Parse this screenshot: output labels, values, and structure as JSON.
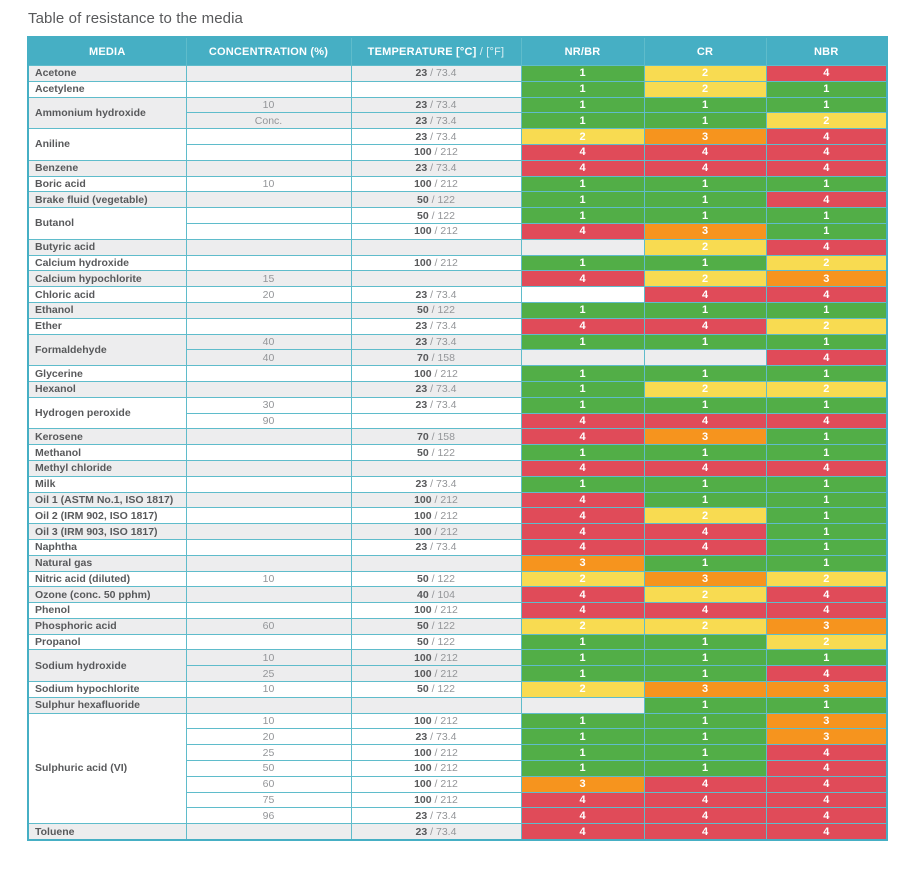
{
  "page": {
    "title": "Table of resistance to the media"
  },
  "table": {
    "header": {
      "media": "MEDIA",
      "concentration": "CONCENTRATION (%)",
      "temperature_main": "TEMPERATURE [°C]",
      "temperature_sub": " / [°F]",
      "nr_br": "NR/BR",
      "cr": "CR",
      "nbr": "NBR"
    },
    "colors": {
      "header_bg": "#46afc4",
      "grid_border": "#5fbccb",
      "zebra_gray": "#ededee",
      "media_text": "#58595b",
      "muted_text": "#939598"
    },
    "rating_colors": {
      "1": "#52ae47",
      "2": "#f8db51",
      "3": "#f6941e",
      "4": "#e04b59"
    },
    "groups": [
      {
        "media": "Acetone",
        "rows": [
          {
            "concentration": "",
            "temp_c": "23",
            "temp_f": "73.4",
            "ratings": [
              "1",
              "2",
              "4"
            ]
          }
        ]
      },
      {
        "media": "Acetylene",
        "rows": [
          {
            "concentration": "",
            "temp_c": "",
            "temp_f": "",
            "ratings": [
              "1",
              "2",
              "1"
            ]
          }
        ]
      },
      {
        "media": "Ammonium hydroxide",
        "rows": [
          {
            "concentration": "10",
            "temp_c": "23",
            "temp_f": "73.4",
            "ratings": [
              "1",
              "1",
              "1"
            ]
          },
          {
            "concentration": "Conc.",
            "temp_c": "23",
            "temp_f": "73.4",
            "ratings": [
              "1",
              "1",
              "2"
            ]
          }
        ]
      },
      {
        "media": "Aniline",
        "rows": [
          {
            "concentration": "",
            "temp_c": "23",
            "temp_f": "73.4",
            "ratings": [
              "2",
              "3",
              "4"
            ]
          },
          {
            "concentration": "",
            "temp_c": "100",
            "temp_f": "212",
            "ratings": [
              "4",
              "4",
              "4"
            ]
          }
        ]
      },
      {
        "media": "Benzene",
        "rows": [
          {
            "concentration": "",
            "temp_c": "23",
            "temp_f": "73.4",
            "ratings": [
              "4",
              "4",
              "4"
            ]
          }
        ]
      },
      {
        "media": "Boric acid",
        "rows": [
          {
            "concentration": "10",
            "temp_c": "100",
            "temp_f": "212",
            "ratings": [
              "1",
              "1",
              "1"
            ]
          }
        ]
      },
      {
        "media": "Brake fluid (vegetable)",
        "rows": [
          {
            "concentration": "",
            "temp_c": "50",
            "temp_f": "122",
            "ratings": [
              "1",
              "1",
              "4"
            ]
          }
        ]
      },
      {
        "media": "Butanol",
        "rows": [
          {
            "concentration": "",
            "temp_c": "50",
            "temp_f": "122",
            "ratings": [
              "1",
              "1",
              "1"
            ]
          },
          {
            "concentration": "",
            "temp_c": "100",
            "temp_f": "212",
            "ratings": [
              "4",
              "3",
              "1"
            ]
          }
        ]
      },
      {
        "media": "Butyric acid",
        "rows": [
          {
            "concentration": "",
            "temp_c": "",
            "temp_f": "",
            "ratings": [
              null,
              "2",
              "4"
            ]
          }
        ]
      },
      {
        "media": "Calcium hydroxide",
        "rows": [
          {
            "concentration": "",
            "temp_c": "100",
            "temp_f": "212",
            "ratings": [
              "1",
              "1",
              "2"
            ]
          }
        ]
      },
      {
        "media": "Calcium hypochlorite",
        "rows": [
          {
            "concentration": "15",
            "temp_c": "",
            "temp_f": "",
            "ratings": [
              "4",
              "2",
              "3"
            ]
          }
        ]
      },
      {
        "media": "Chloric acid",
        "rows": [
          {
            "concentration": "20",
            "temp_c": "23",
            "temp_f": "73.4",
            "ratings": [
              null,
              "4",
              "4"
            ]
          }
        ]
      },
      {
        "media": "Ethanol",
        "rows": [
          {
            "concentration": "",
            "temp_c": "50",
            "temp_f": "122",
            "ratings": [
              "1",
              "1",
              "1"
            ]
          }
        ]
      },
      {
        "media": "Ether",
        "rows": [
          {
            "concentration": "",
            "temp_c": "23",
            "temp_f": "73.4",
            "ratings": [
              "4",
              "4",
              "2"
            ]
          }
        ]
      },
      {
        "media": "Formaldehyde",
        "rows": [
          {
            "concentration": "40",
            "temp_c": "23",
            "temp_f": "73.4",
            "ratings": [
              "1",
              "1",
              "1"
            ]
          },
          {
            "concentration": "40",
            "temp_c": "70",
            "temp_f": "158",
            "ratings": [
              null,
              null,
              "4"
            ]
          }
        ]
      },
      {
        "media": "Glycerine",
        "rows": [
          {
            "concentration": "",
            "temp_c": "100",
            "temp_f": "212",
            "ratings": [
              "1",
              "1",
              "1"
            ]
          }
        ]
      },
      {
        "media": "Hexanol",
        "rows": [
          {
            "concentration": "",
            "temp_c": "23",
            "temp_f": "73.4",
            "ratings": [
              "1",
              "2",
              "2"
            ]
          }
        ]
      },
      {
        "media": "Hydrogen peroxide",
        "rows": [
          {
            "concentration": "30",
            "temp_c": "23",
            "temp_f": "73.4",
            "ratings": [
              "1",
              "1",
              "1"
            ]
          },
          {
            "concentration": "90",
            "temp_c": "",
            "temp_f": "",
            "ratings": [
              "4",
              "4",
              "4"
            ]
          }
        ]
      },
      {
        "media": "Kerosene",
        "rows": [
          {
            "concentration": "",
            "temp_c": "70",
            "temp_f": "158",
            "ratings": [
              "4",
              "3",
              "1"
            ]
          }
        ]
      },
      {
        "media": "Methanol",
        "rows": [
          {
            "concentration": "",
            "temp_c": "50",
            "temp_f": "122",
            "ratings": [
              "1",
              "1",
              "1"
            ]
          }
        ]
      },
      {
        "media": "Methyl chloride",
        "rows": [
          {
            "concentration": "",
            "temp_c": "",
            "temp_f": "",
            "ratings": [
              "4",
              "4",
              "4"
            ]
          }
        ]
      },
      {
        "media": "Milk",
        "rows": [
          {
            "concentration": "",
            "temp_c": "23",
            "temp_f": "73.4",
            "ratings": [
              "1",
              "1",
              "1"
            ]
          }
        ]
      },
      {
        "media": "Oil 1 (ASTM No.1, ISO 1817)",
        "rows": [
          {
            "concentration": "",
            "temp_c": "100",
            "temp_f": "212",
            "ratings": [
              "4",
              "1",
              "1"
            ]
          }
        ]
      },
      {
        "media": "Oil 2 (IRM 902, ISO 1817)",
        "rows": [
          {
            "concentration": "",
            "temp_c": "100",
            "temp_f": "212",
            "ratings": [
              "4",
              "2",
              "1"
            ]
          }
        ]
      },
      {
        "media": "Oil 3 (IRM 903, ISO 1817)",
        "rows": [
          {
            "concentration": "",
            "temp_c": "100",
            "temp_f": "212",
            "ratings": [
              "4",
              "4",
              "1"
            ]
          }
        ]
      },
      {
        "media": "Naphtha",
        "rows": [
          {
            "concentration": "",
            "temp_c": "23",
            "temp_f": "73.4",
            "ratings": [
              "4",
              "4",
              "1"
            ]
          }
        ]
      },
      {
        "media": "Natural gas",
        "rows": [
          {
            "concentration": "",
            "temp_c": "",
            "temp_f": "",
            "ratings": [
              "3",
              "1",
              "1"
            ]
          }
        ]
      },
      {
        "media": "Nitric acid (diluted)",
        "rows": [
          {
            "concentration": "10",
            "temp_c": "50",
            "temp_f": "122",
            "ratings": [
              "2",
              "3",
              "2"
            ]
          }
        ]
      },
      {
        "media": "Ozone (conc. 50 pphm)",
        "rows": [
          {
            "concentration": "",
            "temp_c": "40",
            "temp_f": "104",
            "ratings": [
              "4",
              "2",
              "4"
            ]
          }
        ]
      },
      {
        "media": "Phenol",
        "rows": [
          {
            "concentration": "",
            "temp_c": "100",
            "temp_f": "212",
            "ratings": [
              "4",
              "4",
              "4"
            ]
          }
        ]
      },
      {
        "media": "Phosphoric acid",
        "rows": [
          {
            "concentration": "60",
            "temp_c": "50",
            "temp_f": "122",
            "ratings": [
              "2",
              "2",
              "3"
            ]
          }
        ]
      },
      {
        "media": "Propanol",
        "rows": [
          {
            "concentration": "",
            "temp_c": "50",
            "temp_f": "122",
            "ratings": [
              "1",
              "1",
              "2"
            ]
          }
        ]
      },
      {
        "media": "Sodium hydroxide",
        "rows": [
          {
            "concentration": "10",
            "temp_c": "100",
            "temp_f": "212",
            "ratings": [
              "1",
              "1",
              "1"
            ]
          },
          {
            "concentration": "25",
            "temp_c": "100",
            "temp_f": "212",
            "ratings": [
              "1",
              "1",
              "4"
            ]
          }
        ]
      },
      {
        "media": "Sodium hypochlorite",
        "rows": [
          {
            "concentration": "10",
            "temp_c": "50",
            "temp_f": "122",
            "ratings": [
              "2",
              "3",
              "3"
            ]
          }
        ]
      },
      {
        "media": "Sulphur hexafluoride",
        "rows": [
          {
            "concentration": "",
            "temp_c": "",
            "temp_f": "",
            "ratings": [
              null,
              "1",
              "1"
            ]
          }
        ]
      },
      {
        "media": "Sulphuric acid (VI)",
        "rows": [
          {
            "concentration": "10",
            "temp_c": "100",
            "temp_f": "212",
            "ratings": [
              "1",
              "1",
              "3"
            ]
          },
          {
            "concentration": "20",
            "temp_c": "23",
            "temp_f": "73.4",
            "ratings": [
              "1",
              "1",
              "3"
            ]
          },
          {
            "concentration": "25",
            "temp_c": "100",
            "temp_f": "212",
            "ratings": [
              "1",
              "1",
              "4"
            ]
          },
          {
            "concentration": "50",
            "temp_c": "100",
            "temp_f": "212",
            "ratings": [
              "1",
              "1",
              "4"
            ]
          },
          {
            "concentration": "60",
            "temp_c": "100",
            "temp_f": "212",
            "ratings": [
              "3",
              "4",
              "4"
            ]
          },
          {
            "concentration": "75",
            "temp_c": "100",
            "temp_f": "212",
            "ratings": [
              "4",
              "4",
              "4"
            ]
          },
          {
            "concentration": "96",
            "temp_c": "23",
            "temp_f": "73.4",
            "ratings": [
              "4",
              "4",
              "4"
            ]
          }
        ]
      },
      {
        "media": "Toluene",
        "rows": [
          {
            "concentration": "",
            "temp_c": "23",
            "temp_f": "73.4",
            "ratings": [
              "4",
              "4",
              "4"
            ]
          }
        ]
      }
    ]
  }
}
